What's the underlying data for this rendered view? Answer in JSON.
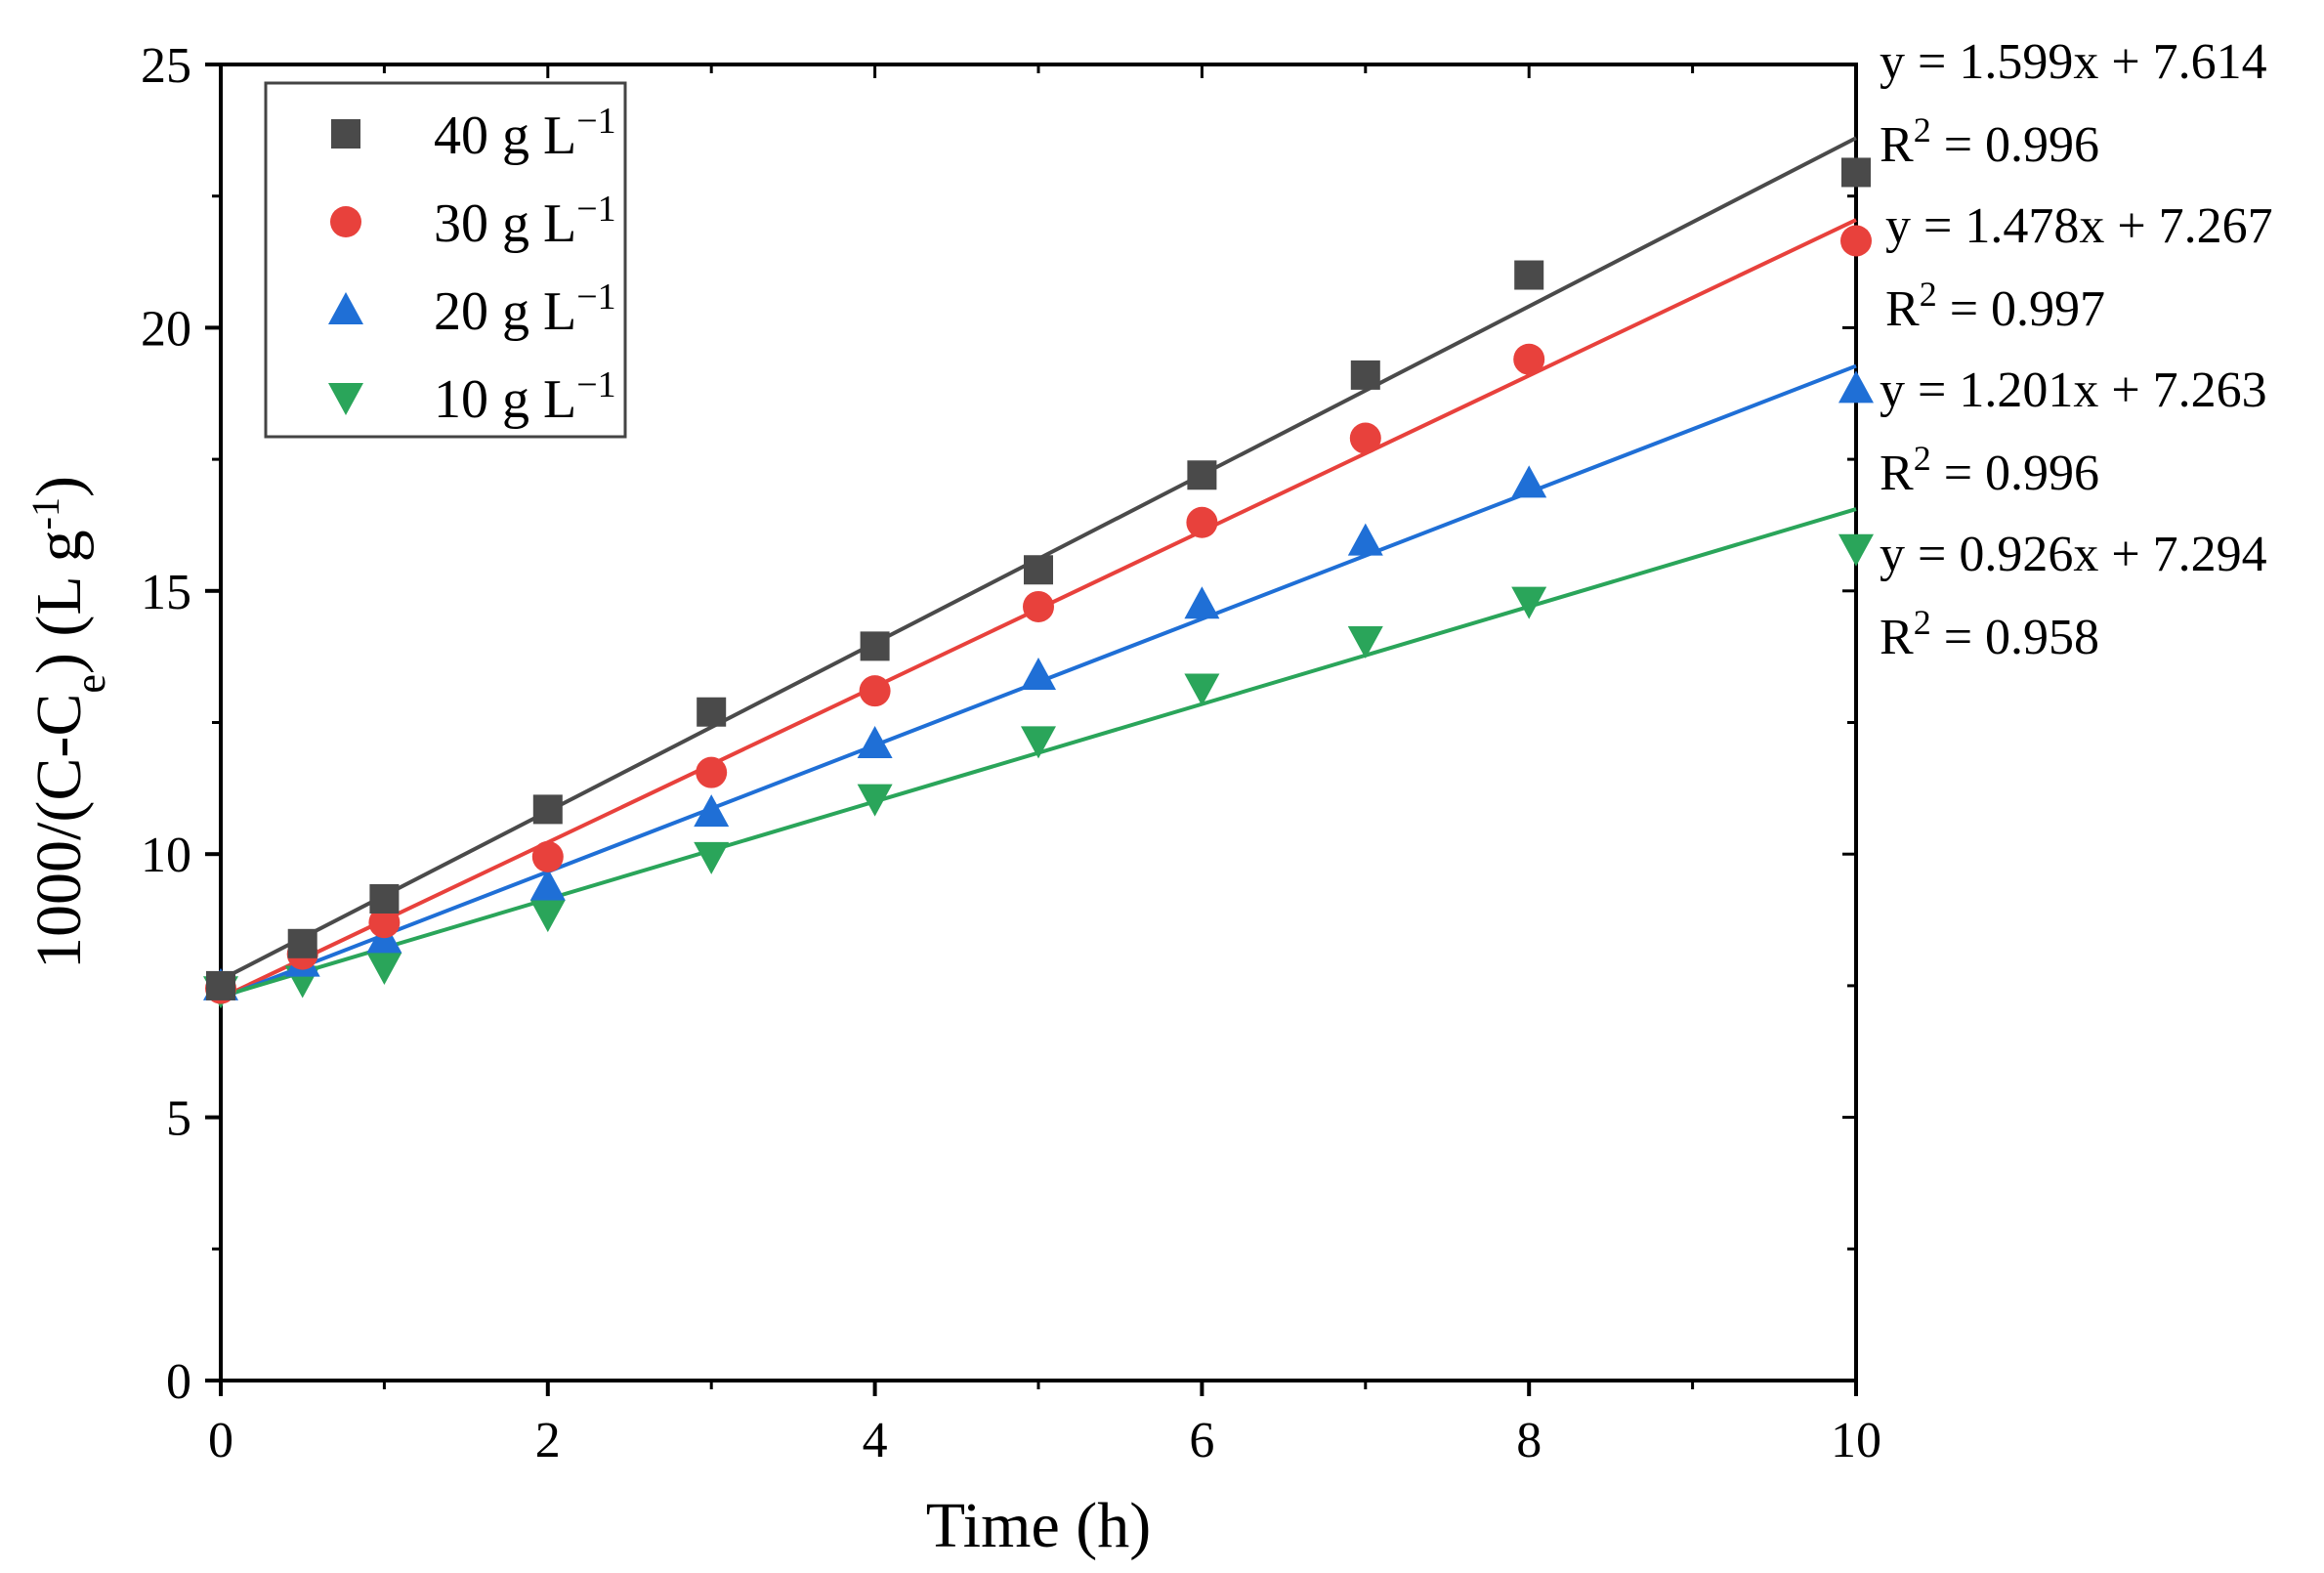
{
  "chart_data": {
    "type": "scatter",
    "xlabel": "Time (h)",
    "ylabel": "1000/(C-C_e) (L g^-1)",
    "ylabel_parts": {
      "main": "1000/(C-C",
      "sub": "e",
      "mid": ") (L g",
      "sup": "-1",
      "end": ")"
    },
    "xlim": [
      0,
      10
    ],
    "ylim": [
      0,
      25
    ],
    "x_major_ticks": [
      0,
      2,
      4,
      6,
      8,
      10
    ],
    "x_tick_labels": [
      "0",
      "2",
      "4",
      "6",
      "8",
      "10"
    ],
    "y_major_ticks": [
      0,
      5,
      10,
      15,
      20,
      25
    ],
    "y_tick_labels": [
      "0",
      "5",
      "10",
      "15",
      "20",
      "25"
    ],
    "grid": false,
    "legend_position": "top-left",
    "x": [
      0,
      0.5,
      1,
      2,
      3,
      4,
      5,
      6,
      7,
      8,
      10
    ],
    "series": [
      {
        "name": "40 g L^-1",
        "label_main": "40 g L",
        "label_sup": "−1",
        "marker": "square",
        "color": "#4a4a4a",
        "values": [
          7.5,
          8.3,
          9.15,
          10.85,
          12.7,
          13.95,
          15.4,
          17.2,
          19.1,
          21.0,
          22.95
        ],
        "fit": {
          "slope": 1.599,
          "intercept": 7.614
        },
        "equation": "y = 1.599x + 7.614",
        "r2_label": "R",
        "r2_sup": "2",
        "r2_value": " = 0.996"
      },
      {
        "name": "30 g L^-1",
        "label_main": "30 g L",
        "label_sup": "−1",
        "marker": "circle",
        "color": "#e8413c",
        "values": [
          7.45,
          8.1,
          8.7,
          9.95,
          11.55,
          13.1,
          14.7,
          16.3,
          17.9,
          19.4,
          21.65
        ],
        "fit": {
          "slope": 1.478,
          "intercept": 7.267
        },
        "equation": "y = 1.478x + 7.267",
        "r2_label": "R",
        "r2_sup": "2",
        "r2_value": " = 0.997"
      },
      {
        "name": "20 g L^-1",
        "label_main": "20 g L",
        "label_sup": "−1",
        "marker": "triangle-up",
        "color": "#1f6fd6",
        "values": [
          7.5,
          7.95,
          8.4,
          9.4,
          10.8,
          12.1,
          13.4,
          14.75,
          15.95,
          17.05,
          18.85
        ],
        "fit": {
          "slope": 1.201,
          "intercept": 7.263
        },
        "equation": "y = 1.201x + 7.263",
        "r2_label": "R",
        "r2_sup": "2",
        "r2_value": " = 0.996"
      },
      {
        "name": "10 g L^-1",
        "label_main": "10 g L",
        "label_sup": "−1",
        "marker": "triangle-down",
        "color": "#2aa55a",
        "values": [
          7.4,
          7.6,
          7.85,
          8.85,
          9.95,
          11.05,
          12.15,
          13.15,
          14.05,
          14.8,
          15.8
        ],
        "fit": {
          "slope": 0.926,
          "intercept": 7.294
        },
        "equation": "y = 0.926x + 7.294",
        "r2_label": "R",
        "r2_sup": "2",
        "r2_value": " = 0.958"
      }
    ]
  }
}
